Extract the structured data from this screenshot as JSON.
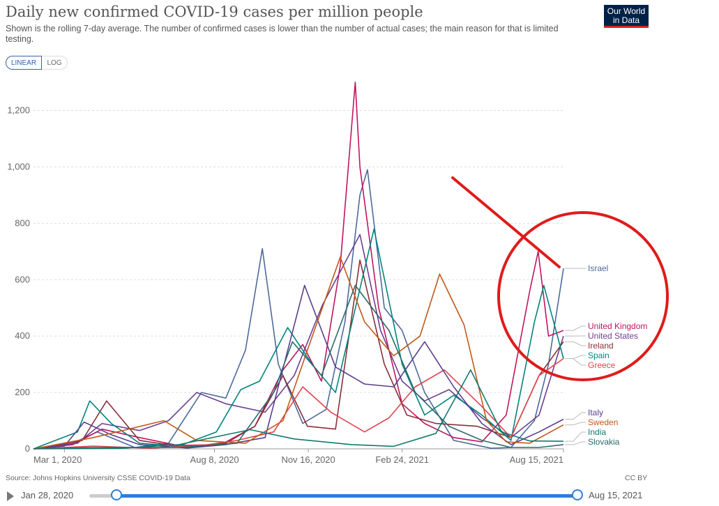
{
  "header": {
    "title": "Daily new confirmed COVID-19 cases per million people",
    "subtitle": "Shown is the rolling 7-day average. The number of confirmed cases is lower than the number of actual cases; the main reason for that is limited testing.",
    "logo_line1": "Our World",
    "logo_line2": "in Data"
  },
  "controls": {
    "linear_label": "LINEAR",
    "log_label": "LOG",
    "active": "LINEAR"
  },
  "footer": {
    "source": "Source: Johns Hopkins University CSSE COVID-19 Data",
    "license": "CC BY"
  },
  "timeline": {
    "start_label": "Jan 28, 2020",
    "end_label": "Aug 15, 2021"
  },
  "colors": {
    "Israel": "#4c6a9c",
    "United Kingdom": "#c1145f",
    "United States": "#6d3e91",
    "Ireland": "#883039",
    "Spain": "#00847e",
    "Greece": "#e0444b",
    "Italy": "#5a3d8f",
    "Sweden": "#c05917",
    "India": "#0f7a6e",
    "Slovakia": "#2a6b6b",
    "annotation": "#e01b1b"
  },
  "chart_data": {
    "type": "line",
    "x_ticks": [
      "Mar 1, 2020",
      "Aug 8, 2020",
      "Nov 16, 2020",
      "Feb 24, 2021",
      "Aug 15, 2021"
    ],
    "y_ticks": [
      "0",
      "200",
      "400",
      "600",
      "800",
      "1,000",
      "1,200"
    ],
    "ylim": [
      0,
      1320
    ],
    "xlim": [
      "2020-01-28",
      "2021-08-15"
    ],
    "grid": true,
    "legend": "right-end-labels",
    "series": [
      {
        "name": "Israel",
        "x": [
          "2020-01-28",
          "2020-03-10",
          "2020-04-05",
          "2020-05-15",
          "2020-06-20",
          "2020-07-25",
          "2020-08-20",
          "2020-09-10",
          "2020-09-28",
          "2020-10-15",
          "2020-11-10",
          "2020-12-05",
          "2020-12-25",
          "2021-01-10",
          "2021-01-18",
          "2021-02-05",
          "2021-02-24",
          "2021-03-20",
          "2021-04-20",
          "2021-05-30",
          "2021-06-20",
          "2021-07-15",
          "2021-07-30",
          "2021-08-15"
        ],
        "y": [
          0,
          20,
          60,
          5,
          20,
          200,
          180,
          350,
          710,
          300,
          90,
          140,
          450,
          900,
          990,
          500,
          420,
          200,
          30,
          2,
          5,
          100,
          300,
          640
        ]
      },
      {
        "name": "United Kingdom",
        "x": [
          "2020-01-28",
          "2020-03-10",
          "2020-04-10",
          "2020-05-20",
          "2020-06-30",
          "2020-08-15",
          "2020-09-20",
          "2020-10-20",
          "2020-11-10",
          "2020-11-30",
          "2020-12-20",
          "2021-01-05",
          "2021-01-10",
          "2021-01-30",
          "2021-02-24",
          "2021-03-20",
          "2021-04-20",
          "2021-05-20",
          "2021-06-15",
          "2021-07-10",
          "2021-07-19",
          "2021-07-30",
          "2021-08-15"
        ],
        "y": [
          0,
          15,
          70,
          40,
          12,
          15,
          80,
          280,
          370,
          240,
          650,
          1300,
          1000,
          500,
          160,
          90,
          40,
          25,
          120,
          560,
          700,
          400,
          420
        ]
      },
      {
        "name": "United States",
        "x": [
          "2020-01-28",
          "2020-03-15",
          "2020-04-10",
          "2020-05-20",
          "2020-06-20",
          "2020-07-20",
          "2020-08-20",
          "2020-10-01",
          "2020-11-01",
          "2020-12-01",
          "2021-01-10",
          "2021-02-01",
          "2021-02-24",
          "2021-03-20",
          "2021-04-15",
          "2021-05-20",
          "2021-06-20",
          "2021-07-20",
          "2021-08-15"
        ],
        "y": [
          0,
          20,
          90,
          65,
          100,
          200,
          160,
          130,
          260,
          510,
          760,
          420,
          240,
          170,
          210,
          110,
          40,
          120,
          400
        ]
      },
      {
        "name": "Ireland",
        "x": [
          "2020-01-28",
          "2020-03-20",
          "2020-04-15",
          "2020-05-20",
          "2020-07-10",
          "2020-08-20",
          "2020-09-20",
          "2020-10-20",
          "2020-11-15",
          "2020-12-15",
          "2021-01-10",
          "2021-02-05",
          "2021-03-01",
          "2021-04-01",
          "2021-05-15",
          "2021-06-20",
          "2021-07-20",
          "2021-08-15"
        ],
        "y": [
          0,
          30,
          170,
          30,
          5,
          20,
          80,
          260,
          80,
          70,
          670,
          300,
          120,
          90,
          80,
          40,
          260,
          380
        ]
      },
      {
        "name": "Spain",
        "x": [
          "2020-01-28",
          "2020-03-15",
          "2020-03-28",
          "2020-04-20",
          "2020-05-20",
          "2020-07-01",
          "2020-08-10",
          "2020-09-05",
          "2020-09-25",
          "2020-10-25",
          "2020-11-20",
          "2020-12-15",
          "2021-01-25",
          "2021-02-24",
          "2021-03-20",
          "2021-04-20",
          "2021-05-20",
          "2021-06-20",
          "2021-07-15",
          "2021-07-25",
          "2021-08-15"
        ],
        "y": [
          0,
          60,
          170,
          90,
          20,
          10,
          60,
          210,
          240,
          430,
          300,
          200,
          780,
          300,
          120,
          190,
          120,
          30,
          450,
          580,
          320
        ]
      },
      {
        "name": "Greece",
        "x": [
          "2020-01-28",
          "2020-04-01",
          "2020-06-01",
          "2020-08-01",
          "2020-09-01",
          "2020-10-10",
          "2020-11-10",
          "2020-12-10",
          "2021-01-15",
          "2021-02-10",
          "2021-03-10",
          "2021-04-10",
          "2021-05-20",
          "2021-06-20",
          "2021-07-20",
          "2021-08-15"
        ],
        "y": [
          0,
          10,
          2,
          15,
          30,
          60,
          220,
          130,
          60,
          110,
          220,
          280,
          150,
          40,
          260,
          320
        ]
      },
      {
        "name": "Italy",
        "x": [
          "2020-01-28",
          "2020-03-01",
          "2020-03-22",
          "2020-04-20",
          "2020-05-20",
          "2020-07-10",
          "2020-08-20",
          "2020-10-01",
          "2020-11-12",
          "2020-12-15",
          "2021-01-15",
          "2021-02-15",
          "2021-03-20",
          "2021-04-20",
          "2021-05-20",
          "2021-06-20",
          "2021-07-20",
          "2021-08-15"
        ],
        "y": [
          0,
          10,
          95,
          50,
          15,
          3,
          15,
          40,
          580,
          290,
          230,
          220,
          380,
          220,
          90,
          15,
          60,
          105
        ]
      },
      {
        "name": "Sweden",
        "x": [
          "2020-01-28",
          "2020-04-01",
          "2020-06-15",
          "2020-07-20",
          "2020-09-10",
          "2020-10-20",
          "2020-11-15",
          "2020-12-20",
          "2021-01-15",
          "2021-02-15",
          "2021-03-15",
          "2021-04-05",
          "2021-05-01",
          "2021-05-25",
          "2021-06-15",
          "2021-07-10",
          "2021-08-15"
        ],
        "y": [
          0,
          40,
          100,
          30,
          20,
          100,
          350,
          680,
          450,
          330,
          400,
          620,
          440,
          100,
          25,
          20,
          85
        ]
      },
      {
        "name": "India",
        "x": [
          "2020-01-28",
          "2020-05-01",
          "2020-07-01",
          "2020-09-15",
          "2020-11-01",
          "2021-01-01",
          "2021-02-15",
          "2021-04-01",
          "2021-05-08",
          "2021-06-10",
          "2021-07-10",
          "2021-08-15"
        ],
        "y": [
          0,
          2,
          15,
          68,
          35,
          15,
          9,
          55,
          280,
          60,
          28,
          27
        ]
      },
      {
        "name": "Slovakia",
        "x": [
          "2020-01-28",
          "2020-04-01",
          "2020-07-01",
          "2020-09-01",
          "2020-10-10",
          "2020-10-30",
          "2020-11-30",
          "2021-01-05",
          "2021-02-10",
          "2021-03-10",
          "2021-04-15",
          "2021-05-20",
          "2021-06-20",
          "2021-07-20",
          "2021-08-15"
        ],
        "y": [
          0,
          5,
          5,
          20,
          200,
          380,
          260,
          580,
          420,
          200,
          80,
          30,
          5,
          5,
          15
        ]
      }
    ]
  }
}
